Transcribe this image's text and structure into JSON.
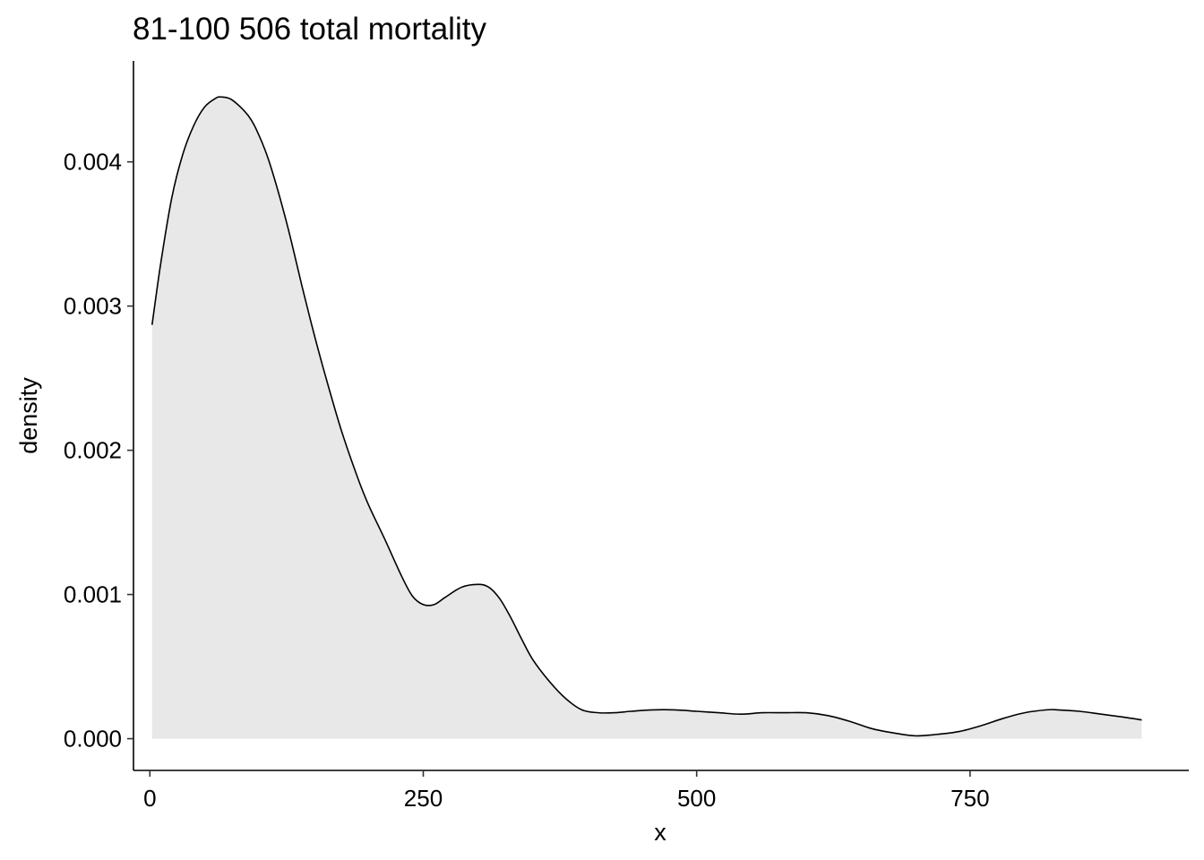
{
  "chart_data": {
    "type": "area",
    "title": "81-100 506 total mortality",
    "xlabel": "x",
    "ylabel": "density",
    "xlim": [
      -15,
      950
    ],
    "ylim": [
      -0.00022,
      0.0047
    ],
    "x_ticks": [
      0,
      250,
      500,
      750
    ],
    "x_tick_labels": [
      "0",
      "250",
      "500",
      "750"
    ],
    "y_ticks": [
      0,
      0.001,
      0.002,
      0.003,
      0.004
    ],
    "y_tick_labels": [
      "0.000",
      "0.001",
      "0.002",
      "0.003",
      "0.004"
    ],
    "grid": false,
    "legend": "none",
    "fill_color": "#e8e8e8",
    "line_color": "#000000",
    "series": [
      {
        "x": [
          2,
          10,
          20,
          30,
          40,
          50,
          60,
          65,
          75,
          90,
          100,
          110,
          125,
          140,
          150,
          160,
          175,
          190,
          200,
          215,
          230,
          240,
          250,
          260,
          270,
          285,
          300,
          310,
          320,
          330,
          340,
          350,
          365,
          380,
          395,
          410,
          425,
          440,
          460,
          480,
          500,
          520,
          540,
          560,
          580,
          600,
          620,
          640,
          660,
          680,
          700,
          720,
          740,
          760,
          780,
          800,
          820,
          830,
          850,
          870,
          890,
          907
        ],
        "y": [
          0.00287,
          0.0033,
          0.00375,
          0.00405,
          0.00425,
          0.00438,
          0.00444,
          0.00445,
          0.00443,
          0.00432,
          0.00418,
          0.00398,
          0.00358,
          0.00311,
          0.00281,
          0.00253,
          0.00214,
          0.00181,
          0.00162,
          0.00138,
          0.00113,
          0.00099,
          0.00093,
          0.00093,
          0.00098,
          0.00105,
          0.00107,
          0.00105,
          0.00097,
          0.00084,
          0.00069,
          0.00055,
          0.0004,
          0.00028,
          0.0002,
          0.00018,
          0.00018,
          0.00019,
          0.0002,
          0.0002,
          0.00019,
          0.00018,
          0.00017,
          0.00018,
          0.00018,
          0.00018,
          0.00016,
          0.00012,
          7e-05,
          4e-05,
          2e-05,
          3e-05,
          5e-05,
          9e-05,
          0.00014,
          0.00018,
          0.0002,
          0.0002,
          0.00019,
          0.00017,
          0.00015,
          0.00013
        ]
      }
    ]
  }
}
